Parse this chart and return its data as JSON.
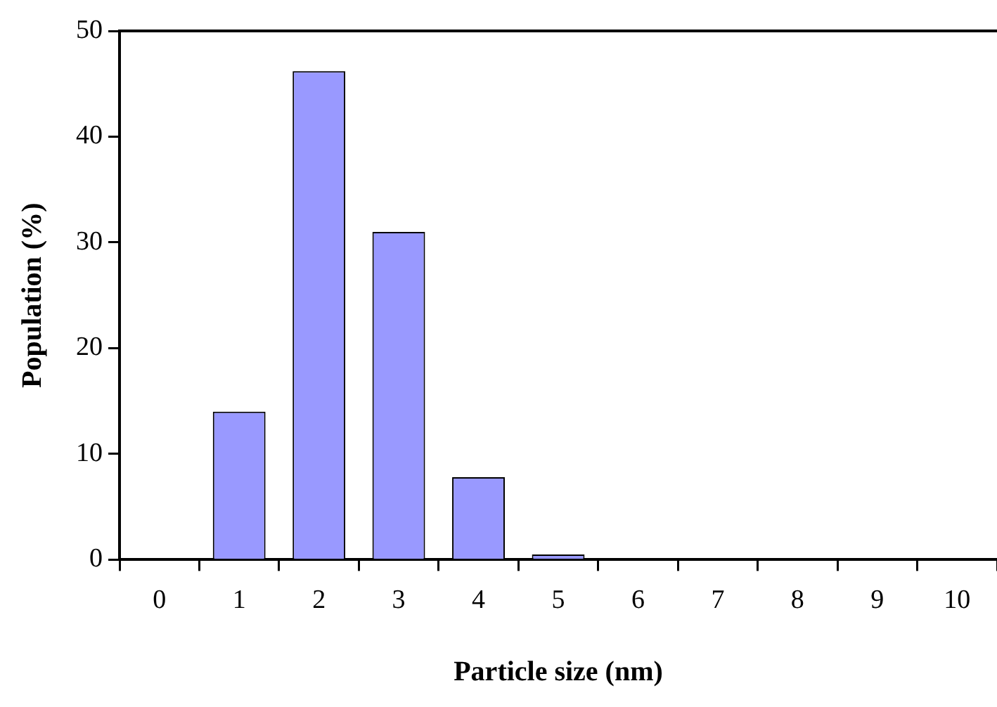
{
  "chart_data": {
    "type": "bar",
    "xlabel": "Particle size (nm)",
    "ylabel": "Population (%)",
    "categories": [
      "0",
      "1",
      "2",
      "3",
      "4",
      "5",
      "6",
      "7",
      "8",
      "9",
      "10"
    ],
    "values": [
      0,
      14,
      46.2,
      31,
      7.8,
      0.5,
      0,
      0,
      0,
      0,
      0
    ],
    "color": "#9999ff",
    "ylim": [
      0,
      50
    ],
    "yticks": [
      0,
      10,
      20,
      30,
      40,
      50
    ],
    "grid": false,
    "legend": false
  }
}
